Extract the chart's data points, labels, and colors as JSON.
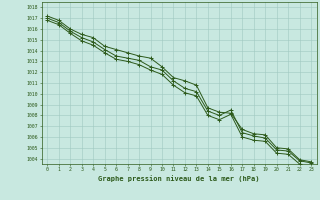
{
  "xlabel": "Graphe pression niveau de la mer (hPa)",
  "x": [
    0,
    1,
    2,
    3,
    4,
    5,
    6,
    7,
    8,
    9,
    10,
    11,
    12,
    13,
    14,
    15,
    16,
    17,
    18,
    19,
    20,
    21,
    22,
    23
  ],
  "line1": [
    1017.2,
    1016.8,
    1016.0,
    1015.5,
    1015.2,
    1014.4,
    1014.1,
    1013.8,
    1013.5,
    1013.3,
    1012.5,
    1011.5,
    1011.2,
    1010.8,
    1008.7,
    1008.3,
    1008.2,
    1006.7,
    1006.3,
    1006.2,
    1005.0,
    1004.9,
    1003.9,
    1003.7
  ],
  "line2": [
    1017.0,
    1016.6,
    1015.8,
    1015.2,
    1014.8,
    1014.1,
    1013.5,
    1013.3,
    1013.1,
    1012.5,
    1012.2,
    1011.2,
    1010.5,
    1010.2,
    1008.4,
    1008.0,
    1008.5,
    1006.4,
    1006.1,
    1005.9,
    1004.8,
    1004.7,
    1003.8,
    1003.6
  ],
  "line3": [
    1016.8,
    1016.4,
    1015.6,
    1014.9,
    1014.5,
    1013.8,
    1013.2,
    1013.0,
    1012.7,
    1012.2,
    1011.8,
    1010.8,
    1010.1,
    1009.8,
    1008.0,
    1007.6,
    1008.1,
    1006.0,
    1005.7,
    1005.6,
    1004.5,
    1004.4,
    1003.5,
    1003.3
  ],
  "line_color": "#2d5a1b",
  "bg_color": "#c8e8e0",
  "grid_color": "#a0c8c0",
  "text_color": "#2d5a1b",
  "ylim_min": 1003.5,
  "ylim_max": 1018.5,
  "yticks": [
    1004,
    1005,
    1006,
    1007,
    1008,
    1009,
    1010,
    1011,
    1012,
    1013,
    1014,
    1015,
    1016,
    1017,
    1018
  ]
}
